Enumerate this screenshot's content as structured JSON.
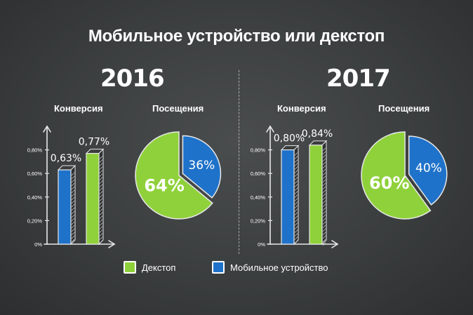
{
  "title": "Мобильное устройство или декстоп",
  "colors": {
    "desktop": "#8fd13a",
    "mobile": "#1f72c9",
    "desktop_dark": "#6aa823",
    "mobile_dark": "#15579e"
  },
  "legend": {
    "desktop_label": "Декстоп",
    "mobile_label": "Мобильное устройство"
  },
  "panels": [
    {
      "year": "2016",
      "conversion_label": "Конверсия",
      "visits_label": "Посещения"
    },
    {
      "year": "2017",
      "conversion_label": "Конверсия",
      "visits_label": "Посещения"
    }
  ],
  "chart_data": [
    {
      "type": "bar",
      "title": "Конверсия",
      "year": "2016",
      "series": [
        {
          "name": "Мобильное устройство",
          "value": 0.63,
          "label": "0,63%"
        },
        {
          "name": "Декстоп",
          "value": 0.77,
          "label": "0,77%"
        }
      ],
      "yticks": [
        "0%",
        "0,20%",
        "0,40%",
        "0,60%",
        "0,80%"
      ],
      "ylim": [
        0,
        1.0
      ]
    },
    {
      "type": "pie",
      "title": "Посещения",
      "year": "2016",
      "slices": [
        {
          "name": "Декстоп",
          "value": 64,
          "label": "64%"
        },
        {
          "name": "Мобильное устройство",
          "value": 36,
          "label": "36%"
        }
      ]
    },
    {
      "type": "bar",
      "title": "Конверсия",
      "year": "2017",
      "series": [
        {
          "name": "Мобильное устройство",
          "value": 0.8,
          "label": "0,80%"
        },
        {
          "name": "Декстоп",
          "value": 0.84,
          "label": "0,84%"
        }
      ],
      "yticks": [
        "0%",
        "0,20%",
        "0,40%",
        "0,60%",
        "0,80%"
      ],
      "ylim": [
        0,
        1.0
      ]
    },
    {
      "type": "pie",
      "title": "Посещения",
      "year": "2017",
      "slices": [
        {
          "name": "Декстоп",
          "value": 60,
          "label": "60%"
        },
        {
          "name": "Мобильное устройство",
          "value": 40,
          "label": "40%"
        }
      ]
    }
  ]
}
